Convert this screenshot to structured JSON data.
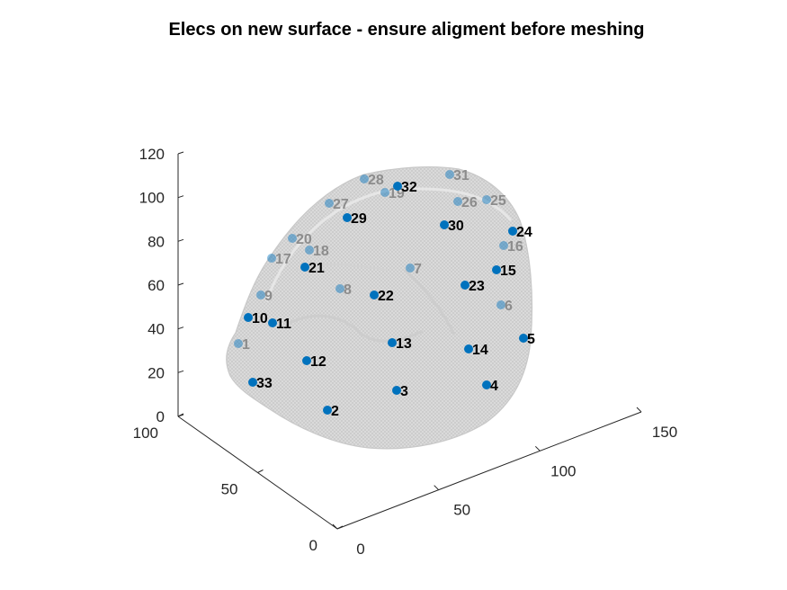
{
  "chart_data": {
    "type": "scatter",
    "title": "Elecs on new surface - ensure aligment before meshing",
    "xlabel": "",
    "ylabel": "",
    "zlabel": "",
    "x_ticks": [
      "0",
      "50",
      "100",
      "150"
    ],
    "y_ticks": [
      "0",
      "50",
      "100"
    ],
    "z_ticks": [
      "0",
      "20",
      "40",
      "60",
      "80",
      "100",
      "120"
    ],
    "xlim": [
      0,
      150
    ],
    "ylim": [
      0,
      100
    ],
    "zlim": [
      0,
      120
    ],
    "grid": false,
    "surface_color": "#d3d3d3",
    "marker_color": "#0072bd",
    "electrodes": [
      {
        "label": "2",
        "front": true
      },
      {
        "label": "3",
        "front": true
      },
      {
        "label": "4",
        "front": true
      },
      {
        "label": "5",
        "front": true
      },
      {
        "label": "6",
        "front": false
      },
      {
        "label": "7",
        "front": false
      },
      {
        "label": "8",
        "front": false
      },
      {
        "label": "9",
        "front": false
      },
      {
        "label": "10",
        "front": true
      },
      {
        "label": "11",
        "front": true
      },
      {
        "label": "12",
        "front": true
      },
      {
        "label": "13",
        "front": true
      },
      {
        "label": "14",
        "front": true
      },
      {
        "label": "15",
        "front": true
      },
      {
        "label": "16",
        "front": false
      },
      {
        "label": "17",
        "front": false
      },
      {
        "label": "18",
        "front": false
      },
      {
        "label": "19",
        "front": false
      },
      {
        "label": "20",
        "front": false
      },
      {
        "label": "21",
        "front": true
      },
      {
        "label": "22",
        "front": true
      },
      {
        "label": "23",
        "front": true
      },
      {
        "label": "24",
        "front": true
      },
      {
        "label": "25",
        "front": false
      },
      {
        "label": "26",
        "front": false
      },
      {
        "label": "27",
        "front": false
      },
      {
        "label": "28",
        "front": false
      },
      {
        "label": "29",
        "front": true
      },
      {
        "label": "30",
        "front": true
      },
      {
        "label": "31",
        "front": false
      },
      {
        "label": "32",
        "front": true
      },
      {
        "label": "33",
        "front": true
      },
      {
        "label": "1",
        "front": false
      }
    ]
  }
}
